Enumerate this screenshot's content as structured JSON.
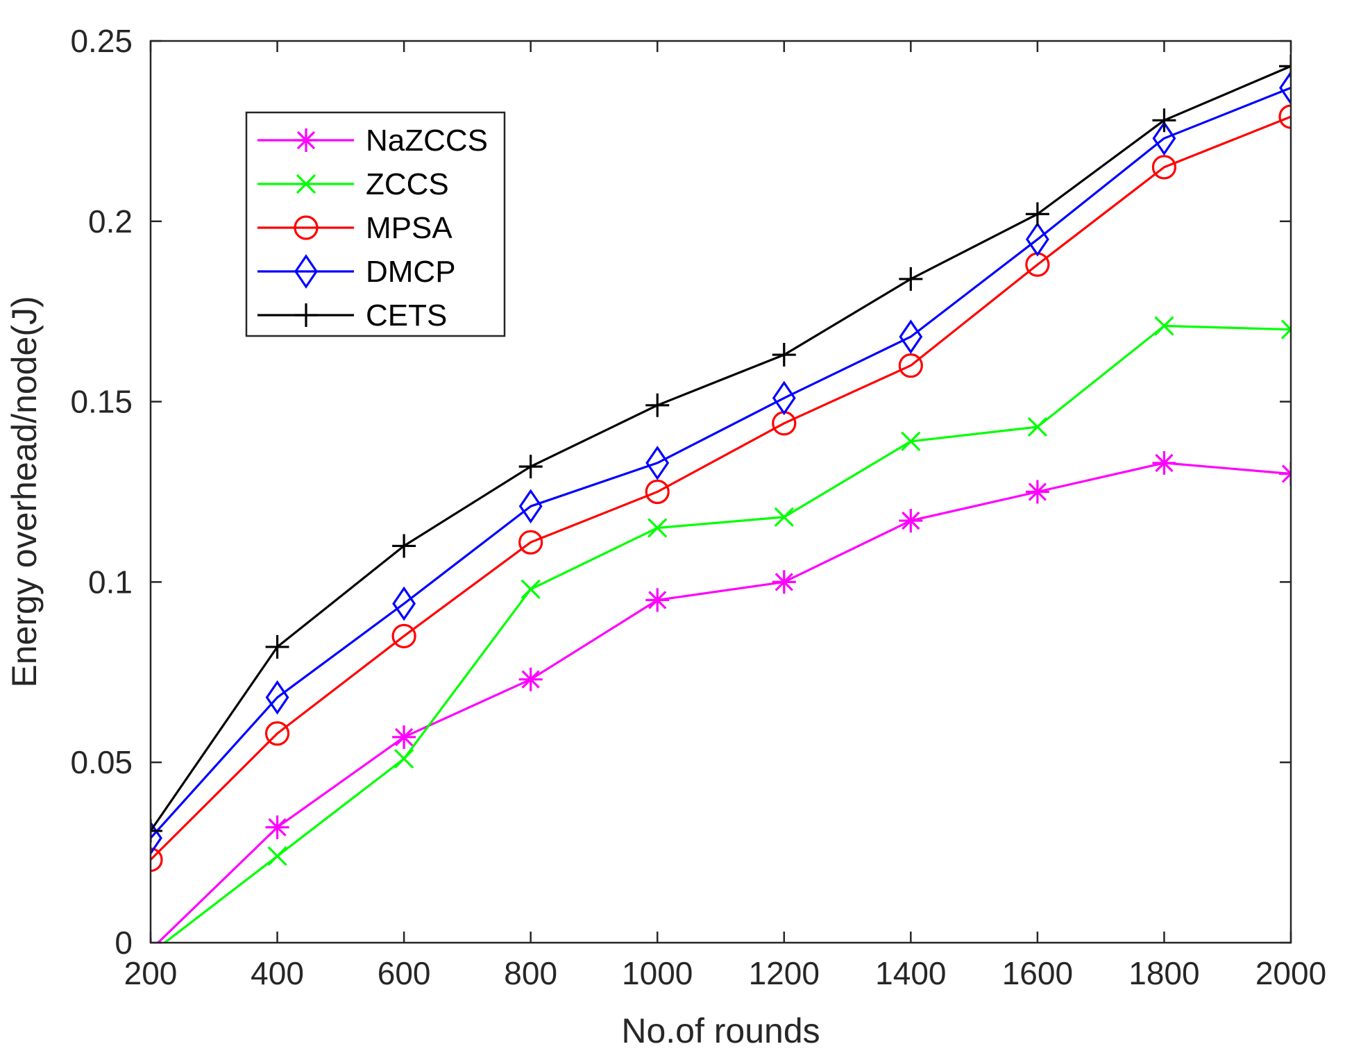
{
  "chart_data": {
    "type": "line",
    "title": "",
    "xlabel": "No.of rounds",
    "ylabel": "Energy overhead/node(J)",
    "x": [
      200,
      400,
      600,
      800,
      1000,
      1200,
      1400,
      1600,
      1800,
      2000
    ],
    "xlim": [
      200,
      2000
    ],
    "ylim": [
      0,
      0.25
    ],
    "xticks": [
      200,
      400,
      600,
      800,
      1000,
      1200,
      1400,
      1600,
      1800,
      2000
    ],
    "xtick_labels": [
      "200",
      "400",
      "600",
      "800",
      "1000",
      "1200",
      "1400",
      "1600",
      "1800",
      "2000"
    ],
    "yticks": [
      0,
      0.05,
      0.1,
      0.15,
      0.2,
      0.25
    ],
    "ytick_labels": [
      "0",
      "0.05",
      "0.1",
      "0.15",
      "0.2",
      "0.25"
    ],
    "grid": false,
    "legend_position": "top-left",
    "series": [
      {
        "name": "NaZCCS",
        "color": "#ff00ff",
        "marker": "asterisk",
        "values": [
          -0.002,
          0.032,
          0.057,
          0.073,
          0.095,
          0.1,
          0.117,
          0.125,
          0.133,
          0.13
        ]
      },
      {
        "name": "ZCCS",
        "color": "#00ff00",
        "marker": "x",
        "values": [
          -0.003,
          0.024,
          0.051,
          0.098,
          0.115,
          0.118,
          0.139,
          0.143,
          0.171,
          0.17
        ]
      },
      {
        "name": "MPSA",
        "color": "#ff0000",
        "marker": "circle",
        "values": [
          0.023,
          0.058,
          0.085,
          0.111,
          0.125,
          0.144,
          0.16,
          0.188,
          0.215,
          0.229
        ]
      },
      {
        "name": "DMCP",
        "color": "#0000ff",
        "marker": "diamond",
        "values": [
          0.029,
          0.068,
          0.094,
          0.121,
          0.133,
          0.151,
          0.168,
          0.195,
          0.223,
          0.237
        ]
      },
      {
        "name": "CETS",
        "color": "#000000",
        "marker": "plus",
        "values": [
          0.031,
          0.082,
          0.11,
          0.132,
          0.149,
          0.163,
          0.184,
          0.202,
          0.228,
          0.243
        ]
      }
    ]
  }
}
